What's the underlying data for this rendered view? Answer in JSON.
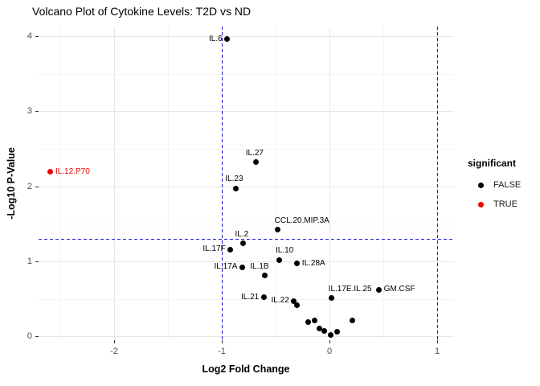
{
  "title": "Volcano Plot of Cytokine Levels: T2D vs ND",
  "chart_data": {
    "type": "scatter",
    "title": "Volcano Plot of Cytokine Levels: T2D vs ND",
    "xlabel": "Log2 Fold Change",
    "ylabel": "-Log10 P-Value",
    "xlim": [
      -2.7,
      1.16
    ],
    "ylim": [
      -0.05,
      4.13
    ],
    "x_ticks": [
      -2,
      -1,
      0,
      1
    ],
    "y_ticks": [
      0,
      1,
      2,
      3,
      4
    ],
    "x_minor_ticks": [
      -2.5,
      -1.5,
      -0.5,
      0.5
    ],
    "y_minor_ticks": [
      0.5,
      1.5,
      2.5,
      3.5
    ],
    "grid": "major+minor",
    "colors": {
      "false_color": "#000000",
      "true_color": "#ee0000",
      "threshold": "#1a1ad9"
    },
    "threshold_lines": {
      "vertical": [
        -1,
        1
      ],
      "horizontal": [
        1.301
      ],
      "style": "dashed"
    },
    "legend": {
      "title": "significant",
      "position": "right",
      "entries": [
        {
          "label": "FALSE",
          "color": "#000000"
        },
        {
          "label": "TRUE",
          "color": "#ee0000"
        }
      ]
    },
    "points": [
      {
        "name": "IL.6",
        "x": -0.95,
        "y": 3.96,
        "significant": false,
        "label_pos": "left"
      },
      {
        "name": "IL.12.P70",
        "x": -2.59,
        "y": 2.19,
        "significant": true,
        "label_pos": "right"
      },
      {
        "name": "IL.27",
        "x": -0.68,
        "y": 2.32,
        "significant": false,
        "label_pos": "above"
      },
      {
        "name": "IL.23",
        "x": -0.87,
        "y": 1.97,
        "significant": false,
        "label_pos": "above"
      },
      {
        "name": "CCL.20.MIP.3A",
        "x": -0.48,
        "y": 1.42,
        "significant": false,
        "label_pos": "above-right"
      },
      {
        "name": "IL.2",
        "x": -0.8,
        "y": 1.24,
        "significant": false,
        "label_pos": "above"
      },
      {
        "name": "IL.17F",
        "x": -0.92,
        "y": 1.16,
        "significant": false,
        "label_pos": "left"
      },
      {
        "name": "IL.10",
        "x": -0.47,
        "y": 1.02,
        "significant": false,
        "label_pos": "above-right"
      },
      {
        "name": "IL.28A",
        "x": -0.3,
        "y": 0.97,
        "significant": false,
        "label_pos": "right"
      },
      {
        "name": "IL.17A",
        "x": -0.81,
        "y": 0.92,
        "significant": false,
        "label_pos": "left"
      },
      {
        "name": "IL.1B",
        "x": -0.6,
        "y": 0.81,
        "significant": false,
        "label_pos": "above-left"
      },
      {
        "name": "IL.21",
        "x": -0.61,
        "y": 0.52,
        "significant": false,
        "label_pos": "left"
      },
      {
        "name": "IL.17E.IL.25",
        "x": 0.02,
        "y": 0.51,
        "significant": false,
        "label_pos": "above-right"
      },
      {
        "name": "GM.CSF",
        "x": 0.46,
        "y": 0.62,
        "significant": false,
        "label_pos": "right"
      },
      {
        "name": "IL.22",
        "x": -0.33,
        "y": 0.47,
        "significant": false,
        "label_pos": "left"
      },
      {
        "name": "",
        "x": -0.3,
        "y": 0.42,
        "significant": false,
        "label_pos": ""
      },
      {
        "name": "",
        "x": -0.2,
        "y": 0.19,
        "significant": false,
        "label_pos": ""
      },
      {
        "name": "",
        "x": -0.14,
        "y": 0.21,
        "significant": false,
        "label_pos": ""
      },
      {
        "name": "",
        "x": -0.09,
        "y": 0.11,
        "significant": false,
        "label_pos": ""
      },
      {
        "name": "",
        "x": -0.05,
        "y": 0.07,
        "significant": false,
        "label_pos": ""
      },
      {
        "name": "",
        "x": 0.01,
        "y": 0.02,
        "significant": false,
        "label_pos": ""
      },
      {
        "name": "",
        "x": 0.07,
        "y": 0.06,
        "significant": false,
        "label_pos": ""
      },
      {
        "name": "",
        "x": 0.21,
        "y": 0.21,
        "significant": false,
        "label_pos": ""
      }
    ]
  }
}
